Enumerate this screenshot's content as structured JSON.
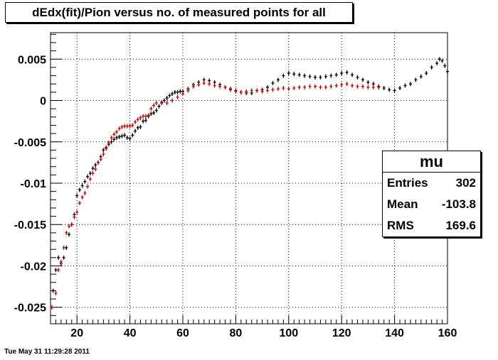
{
  "chart_data": {
    "type": "scatter",
    "title": "dEdx(fit)/Pion versus no. of measured points for all",
    "xlim": [
      10,
      160
    ],
    "ylim": [
      -0.027,
      0.0082
    ],
    "x_ticks": [
      20,
      40,
      60,
      80,
      100,
      120,
      140,
      160
    ],
    "x_tick_labels": [
      "20",
      "40",
      "60",
      "80",
      "100",
      "120",
      "140",
      "160"
    ],
    "y_ticks": [
      -0.025,
      -0.02,
      -0.015,
      -0.01,
      -0.005,
      0,
      0.005
    ],
    "y_tick_labels": [
      "-0.025",
      "-0.02",
      "-0.015",
      "-0.01",
      "-0.005",
      "0",
      "0.005"
    ],
    "grid": true,
    "series": [
      {
        "color": "#000000",
        "x": [
          10.5,
          11,
          12,
          13,
          14,
          15,
          16,
          17,
          18,
          19,
          20,
          21,
          22,
          23,
          24,
          25,
          26,
          27,
          28,
          29,
          30,
          31,
          32,
          33,
          34,
          35,
          36,
          37,
          38,
          39,
          40,
          41,
          42,
          43,
          44,
          45,
          46,
          47,
          48,
          49,
          50,
          51,
          52,
          53,
          54,
          55,
          56,
          57,
          58,
          59,
          60,
          62,
          64,
          66,
          68,
          70,
          72,
          74,
          76,
          78,
          80,
          82,
          84,
          86,
          88,
          90,
          92,
          94,
          96,
          98,
          100,
          102,
          104,
          106,
          108,
          110,
          112,
          114,
          116,
          118,
          120,
          122,
          124,
          126,
          128,
          130,
          132,
          134,
          136,
          138,
          140,
          142,
          144,
          146,
          148,
          150,
          152,
          154,
          156,
          157,
          158,
          159,
          160
        ],
        "y": [
          -0.025,
          -0.023,
          -0.0205,
          -0.019,
          -0.0197,
          -0.019,
          -0.0178,
          -0.0162,
          -0.015,
          -0.0138,
          -0.0115,
          -0.0108,
          -0.0103,
          -0.0098,
          -0.0092,
          -0.0088,
          -0.0082,
          -0.0078,
          -0.0075,
          -0.0068,
          -0.006,
          -0.0057,
          -0.0053,
          -0.005,
          -0.0047,
          -0.0045,
          -0.0044,
          -0.0043,
          -0.0042,
          -0.0045,
          -0.0046,
          -0.0042,
          -0.0037,
          -0.0033,
          -0.0032,
          -0.0025,
          -0.0024,
          -0.0019,
          -0.0016,
          -0.0015,
          -0.0012,
          -0.0007,
          -0.0003,
          0.0,
          0.0003,
          0.0006,
          0.0008,
          0.001,
          0.001,
          0.0011,
          0.0011,
          0.0014,
          0.0019,
          0.0022,
          0.0025,
          0.0024,
          0.0022,
          0.0019,
          0.0016,
          0.0014,
          0.0012,
          0.001,
          0.0009,
          0.0009,
          0.0012,
          0.0013,
          0.0016,
          0.0021,
          0.0025,
          0.003,
          0.0033,
          0.0032,
          0.0031,
          0.003,
          0.0029,
          0.0028,
          0.0028,
          0.0029,
          0.003,
          0.0031,
          0.0033,
          0.0034,
          0.0031,
          0.0028,
          0.0025,
          0.0022,
          0.002,
          0.0017,
          0.0015,
          0.0013,
          0.0012,
          0.0015,
          0.0018,
          0.002,
          0.0025,
          0.0029,
          0.0033,
          0.004,
          0.0045,
          0.005,
          0.0048,
          0.0042,
          0.0035
        ]
      },
      {
        "color": "#cc0000",
        "x": [
          10.5,
          12,
          13,
          14,
          15,
          16,
          17,
          18,
          19,
          20,
          21,
          22,
          23,
          24,
          25,
          26,
          27,
          28,
          29,
          30,
          31,
          32,
          33,
          34,
          35,
          36,
          37,
          38,
          39,
          40,
          41,
          42,
          43,
          44,
          45,
          46,
          47,
          48,
          49,
          50,
          52,
          54,
          56,
          58,
          60,
          62,
          64,
          66,
          68,
          70,
          72,
          74,
          76,
          78,
          80,
          82,
          84,
          86,
          88,
          90,
          92,
          94,
          96,
          98,
          100,
          102,
          104,
          106,
          108,
          110,
          112,
          114,
          116,
          118,
          120,
          122,
          124,
          126,
          128,
          130,
          132,
          134
        ],
        "y": [
          -0.025,
          -0.0233,
          -0.0205,
          -0.0195,
          -0.0178,
          -0.016,
          -0.0152,
          -0.015,
          -0.0141,
          -0.0135,
          -0.0124,
          -0.0117,
          -0.0112,
          -0.0104,
          -0.0095,
          -0.0088,
          -0.0083,
          -0.0075,
          -0.0071,
          -0.0065,
          -0.0058,
          -0.0051,
          -0.0045,
          -0.0041,
          -0.0038,
          -0.0034,
          -0.0032,
          -0.0031,
          -0.0031,
          -0.0031,
          -0.003,
          -0.0026,
          -0.0023,
          -0.0021,
          -0.0019,
          -0.0019,
          -0.0018,
          -0.001,
          -0.0006,
          -0.0003,
          -0.0002,
          -0.0003,
          0.0,
          0.0004,
          0.0008,
          0.0012,
          0.0017,
          0.0019,
          0.0021,
          0.002,
          0.0018,
          0.0017,
          0.0016,
          0.0013,
          0.0011,
          0.001,
          0.0011,
          0.0012,
          0.0012,
          0.0011,
          0.0012,
          0.0013,
          0.0014,
          0.0015,
          0.0014,
          0.0015,
          0.0016,
          0.0016,
          0.0017,
          0.0017,
          0.0016,
          0.0016,
          0.0017,
          0.0018,
          0.0019,
          0.002,
          0.0018,
          0.0017,
          0.0017,
          0.0016,
          0.0016,
          0.0016
        ]
      }
    ]
  },
  "stats": {
    "name": "mu",
    "entries_label": "Entries",
    "entries_value": "302",
    "mean_label": "Mean",
    "mean_value": "-103.8",
    "rms_label": "RMS",
    "rms_value": "169.6"
  },
  "timestamp": "Tue May 31 11:29:28 2011"
}
